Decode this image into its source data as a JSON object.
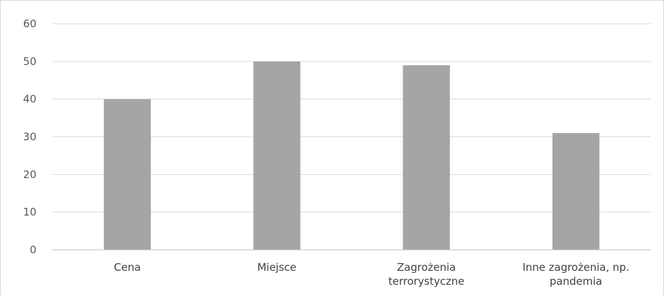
{
  "chart_data": {
    "type": "bar",
    "title": "",
    "xlabel": "",
    "ylabel": "",
    "categories": [
      [
        "Cena"
      ],
      [
        "Miejsce"
      ],
      [
        "Zagrożenia",
        "terrorystyczne"
      ],
      [
        "Inne zagrożenia, np.",
        "pandemia"
      ]
    ],
    "values": [
      40,
      50,
      49,
      31
    ],
    "ylim": [
      0,
      60
    ],
    "yticks": [
      0,
      10,
      20,
      30,
      40,
      50,
      60
    ],
    "grid": true,
    "legend": "none",
    "colors": {
      "bar": "#a5a5a5",
      "grid": "#d9d9d9",
      "axis": "#bfbfbf",
      "tick_text": "#595959",
      "label_text": "#404040"
    }
  }
}
